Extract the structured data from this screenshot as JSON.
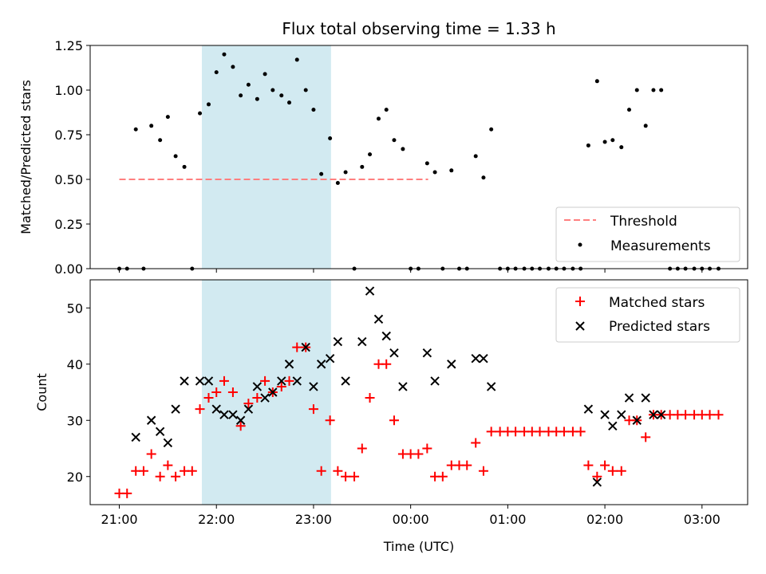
{
  "chart_data": [
    {
      "type": "scatter",
      "title": "Flux total observing time = 1.33 h",
      "xlabel": "",
      "ylabel": "Matched/Predicted stars",
      "ylim": [
        0,
        1.25
      ],
      "yticks": [
        "0.00",
        "0.25",
        "0.50",
        "0.75",
        "1.00",
        "1.25"
      ],
      "shaded_span_hours": [
        21.85,
        23.18
      ],
      "shaded_color": "#add8e6",
      "threshold": {
        "name": "Threshold",
        "value": 0.5,
        "x_range": [
          21.0,
          24.18
        ],
        "color": "#ff7f7f"
      },
      "legend_location": "lower-right",
      "series": [
        {
          "name": "Measurements",
          "color": "#000000",
          "x": [
            21.0,
            21.08,
            21.17,
            21.25,
            21.33,
            21.42,
            21.5,
            21.58,
            21.67,
            21.75,
            21.83,
            21.92,
            22.0,
            22.08,
            22.17,
            22.25,
            22.33,
            22.42,
            22.5,
            22.58,
            22.67,
            22.75,
            22.83,
            22.92,
            23.0,
            23.08,
            23.17,
            23.25,
            23.33,
            23.42,
            23.5,
            23.58,
            23.67,
            23.75,
            23.83,
            23.92,
            24.0,
            24.08,
            24.17,
            24.25,
            24.33,
            24.42,
            24.5,
            24.58,
            24.67,
            24.75,
            24.83,
            24.92,
            25.0,
            25.08,
            25.17,
            25.25,
            25.33,
            25.42,
            25.5,
            25.58,
            25.67,
            25.75,
            25.83,
            25.92,
            26.0,
            26.08,
            26.17,
            26.25,
            26.33,
            26.42,
            26.5,
            26.58,
            26.67,
            26.75,
            26.83,
            26.92,
            27.0,
            27.08,
            27.17
          ],
          "y": [
            0,
            0,
            0.78,
            0,
            0.8,
            0.72,
            0.85,
            0.63,
            0.57,
            0,
            0.87,
            0.92,
            1.1,
            1.2,
            1.13,
            0.97,
            1.03,
            0.95,
            1.09,
            1.0,
            0.97,
            0.93,
            1.17,
            1.0,
            0.89,
            0.53,
            0.73,
            0.48,
            0.54,
            0,
            0.57,
            0.64,
            0.84,
            0.89,
            0.72,
            0.67,
            0,
            0,
            0.59,
            0.54,
            0,
            0.55,
            0,
            0,
            0.63,
            0.51,
            0.78,
            0,
            0,
            0,
            0,
            0,
            0,
            0,
            0,
            0,
            0,
            0,
            0.69,
            1.05,
            0.71,
            0.72,
            0.68,
            0.89,
            1.0,
            0.8,
            1.0,
            1.0,
            0,
            0,
            0,
            0,
            0,
            0,
            0
          ]
        }
      ]
    },
    {
      "type": "scatter",
      "title": "",
      "xlabel": "Time (UTC)",
      "ylabel": "Count",
      "ylim": [
        15,
        55
      ],
      "yticks": [
        "20",
        "30",
        "40",
        "50"
      ],
      "xticks": [
        "21:00",
        "22:00",
        "23:00",
        "00:00",
        "01:00",
        "02:00",
        "03:00"
      ],
      "xtick_hours": [
        21,
        22,
        23,
        24,
        25,
        26,
        27
      ],
      "xlim_hours": [
        20.7,
        27.47
      ],
      "shaded_span_hours": [
        21.85,
        23.18
      ],
      "legend_location": "top-right",
      "series": [
        {
          "name": "Matched stars",
          "marker": "plus",
          "color": "#ff0000",
          "x": [
            21.0,
            21.08,
            21.17,
            21.25,
            21.33,
            21.42,
            21.5,
            21.58,
            21.67,
            21.75,
            21.83,
            21.92,
            22.0,
            22.08,
            22.17,
            22.25,
            22.33,
            22.42,
            22.5,
            22.58,
            22.67,
            22.75,
            22.83,
            22.92,
            23.0,
            23.08,
            23.17,
            23.25,
            23.33,
            23.42,
            23.5,
            23.58,
            23.67,
            23.75,
            23.83,
            23.92,
            24.0,
            24.08,
            24.17,
            24.25,
            24.33,
            24.42,
            24.5,
            24.58,
            24.67,
            24.75,
            24.83,
            24.92,
            25.0,
            25.08,
            25.17,
            25.25,
            25.33,
            25.42,
            25.5,
            25.58,
            25.67,
            25.75,
            25.83,
            25.92,
            26.0,
            26.08,
            26.17,
            26.25,
            26.33,
            26.42,
            26.5,
            26.58,
            26.67,
            26.75,
            26.83,
            26.92,
            27.0,
            27.08,
            27.17
          ],
          "y": [
            17,
            17,
            21,
            21,
            24,
            20,
            22,
            20,
            21,
            21,
            32,
            34,
            35,
            37,
            35,
            29,
            33,
            34,
            37,
            35,
            36,
            37,
            43,
            43,
            32,
            21,
            30,
            21,
            20,
            20,
            25,
            34,
            40,
            40,
            30,
            24,
            24,
            24,
            25,
            20,
            20,
            22,
            22,
            22,
            26,
            21,
            28,
            28,
            28,
            28,
            28,
            28,
            28,
            28,
            28,
            28,
            28,
            28,
            22,
            20,
            22,
            21,
            21,
            30,
            30,
            27,
            31,
            31,
            31,
            31,
            31,
            31,
            31,
            31,
            31
          ]
        },
        {
          "name": "Predicted stars",
          "marker": "x",
          "color": "#000000",
          "x": [
            21.17,
            21.33,
            21.42,
            21.5,
            21.58,
            21.67,
            21.83,
            21.92,
            22.0,
            22.08,
            22.17,
            22.25,
            22.33,
            22.42,
            22.5,
            22.58,
            22.67,
            22.75,
            22.83,
            22.92,
            23.0,
            23.08,
            23.17,
            23.25,
            23.33,
            23.5,
            23.58,
            23.67,
            23.75,
            23.83,
            23.92,
            24.17,
            24.25,
            24.42,
            24.67,
            24.75,
            24.83,
            25.83,
            25.92,
            26.0,
            26.08,
            26.17,
            26.25,
            26.33,
            26.42,
            26.5,
            26.58
          ],
          "y": [
            27,
            30,
            28,
            26,
            32,
            37,
            37,
            37,
            32,
            31,
            31,
            30,
            32,
            36,
            34,
            35,
            37,
            40,
            37,
            43,
            36,
            40,
            41,
            44,
            37,
            44,
            53,
            48,
            45,
            42,
            36,
            42,
            37,
            40,
            41,
            41,
            36,
            32,
            19,
            31,
            29,
            31,
            34,
            30,
            34,
            31,
            31
          ]
        }
      ]
    }
  ]
}
